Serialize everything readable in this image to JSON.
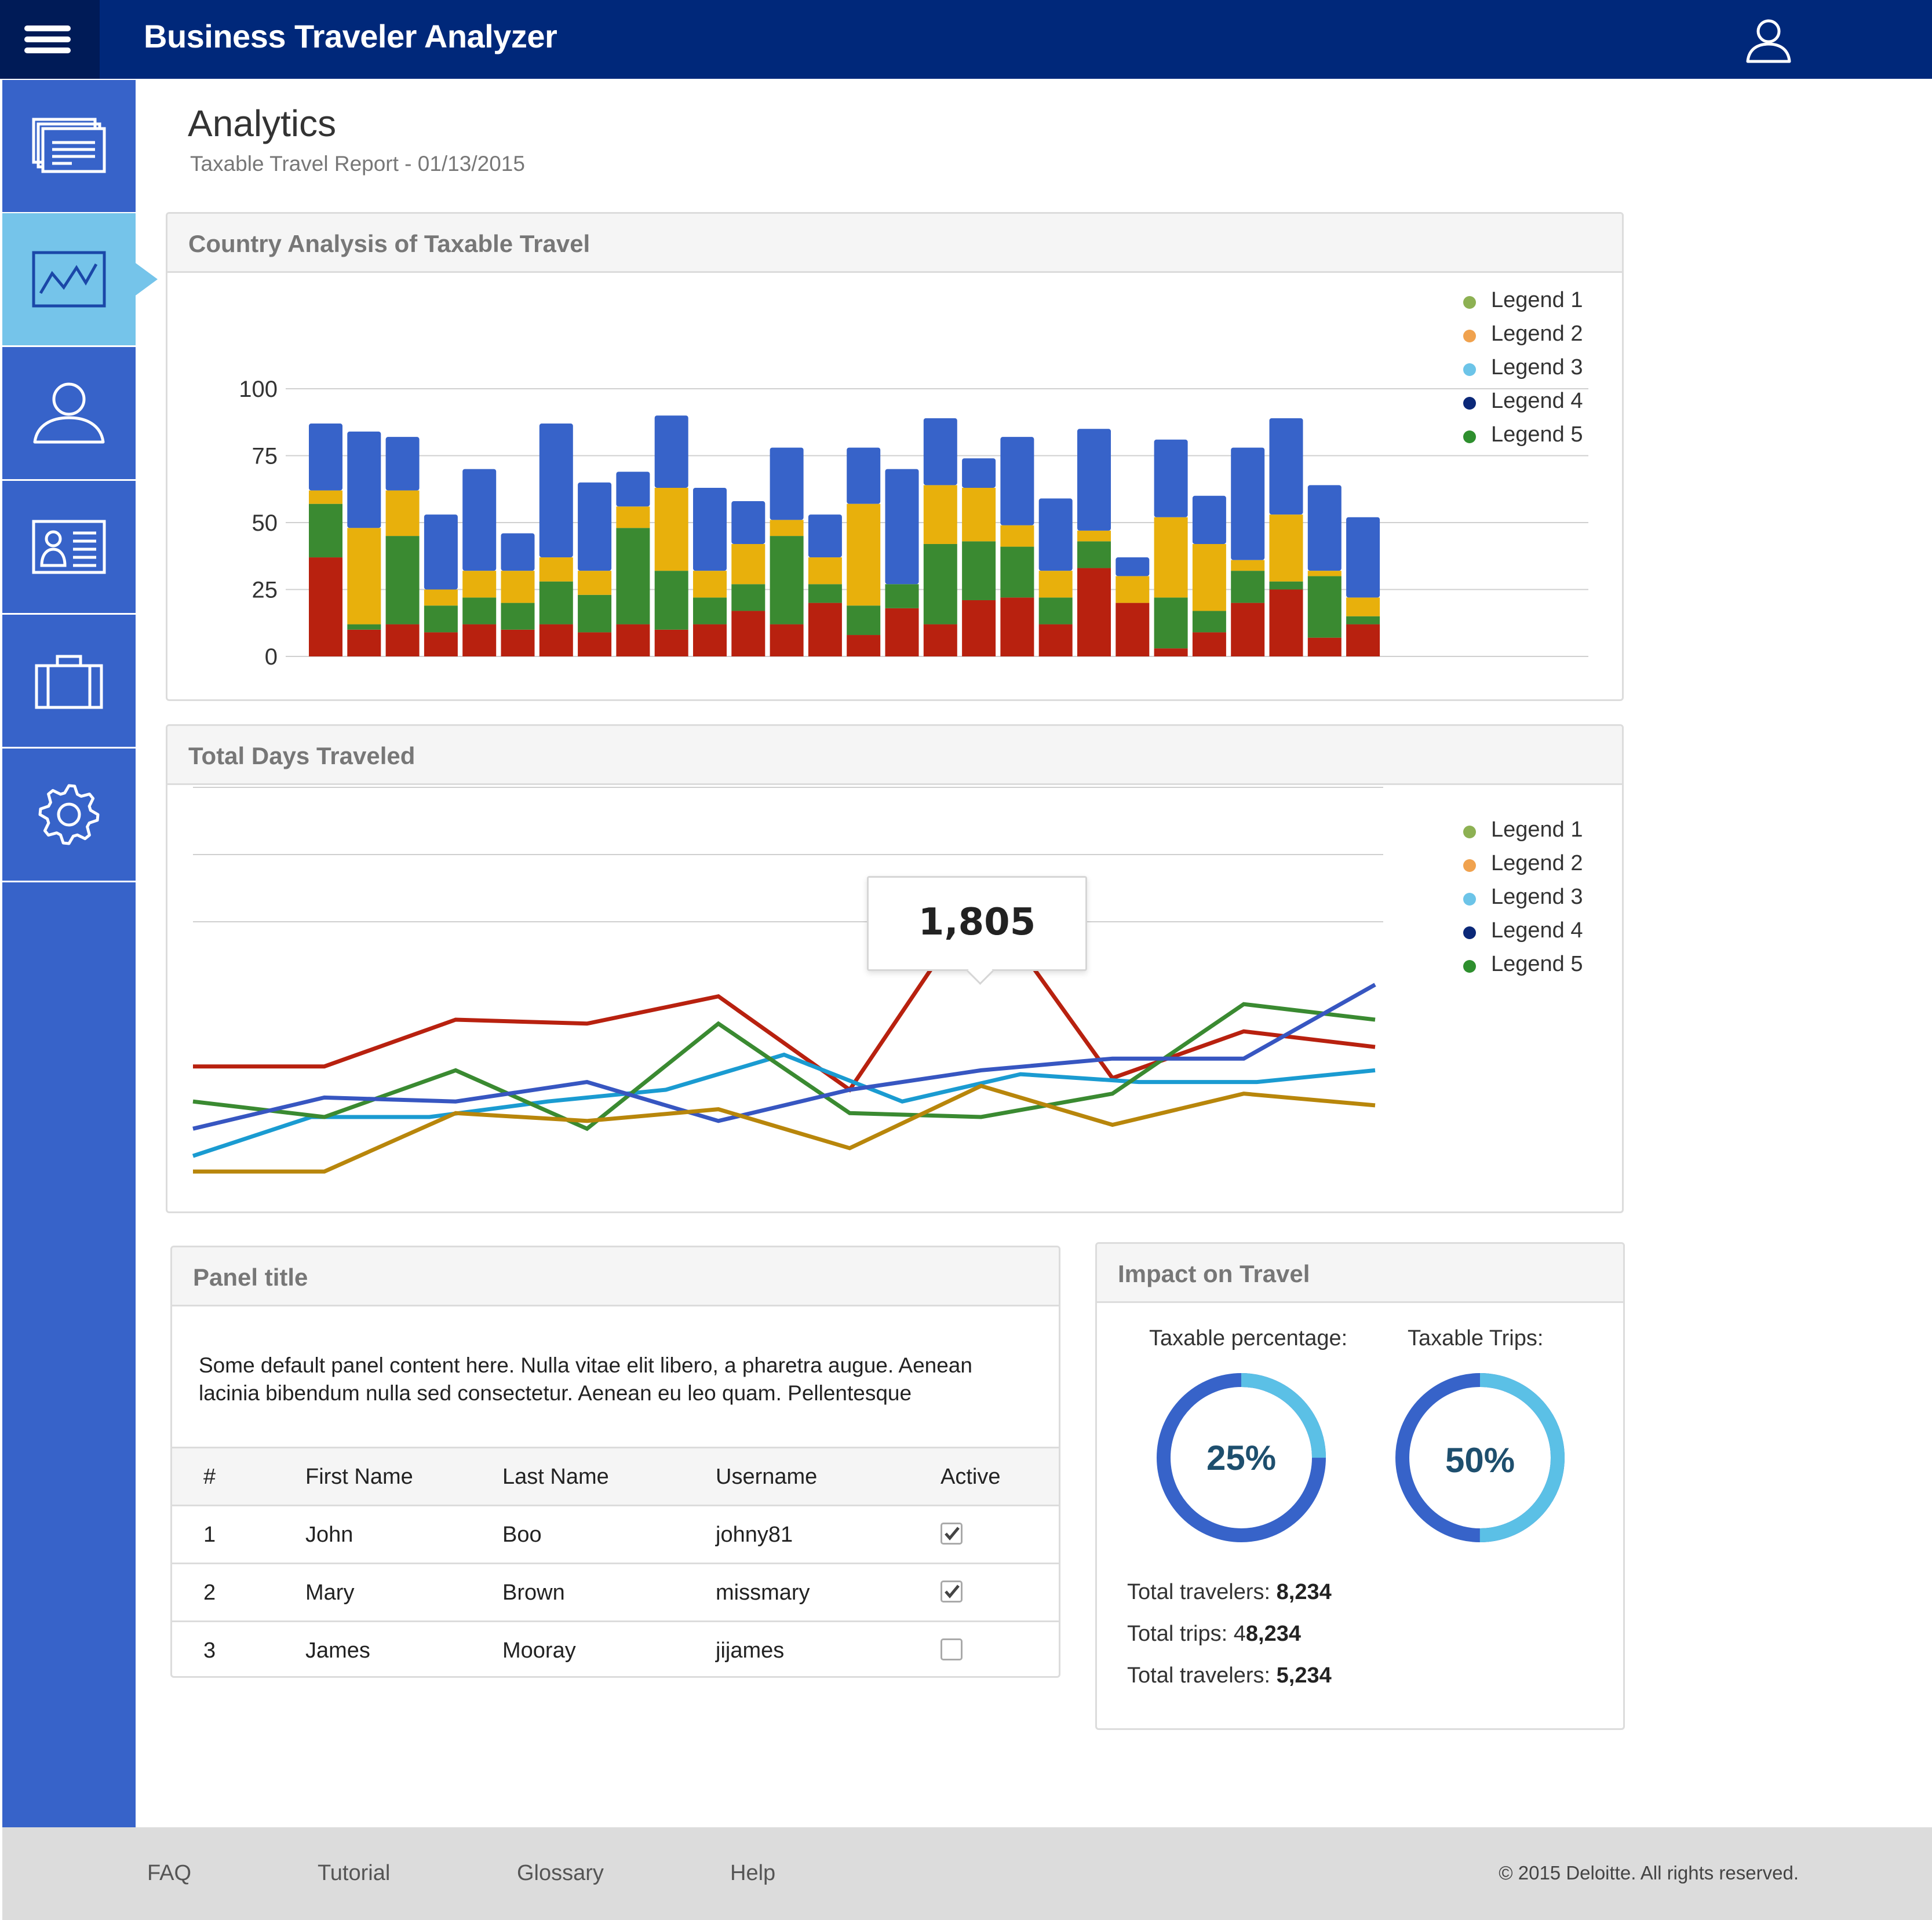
{
  "header": {
    "title": "Business Traveler Analyzer",
    "menu_icon": "hamburger-icon",
    "user_icon": "user-icon"
  },
  "sidebar": {
    "items": [
      {
        "icon": "reports-icon",
        "active": false
      },
      {
        "icon": "analytics-icon",
        "active": true
      },
      {
        "icon": "person-icon",
        "active": false
      },
      {
        "icon": "id-card-icon",
        "active": false
      },
      {
        "icon": "briefcase-icon",
        "active": false
      },
      {
        "icon": "gear-icon",
        "active": false
      }
    ]
  },
  "page": {
    "title": "Analytics",
    "subtitle": "Taxable Travel Report - 01/13/2015"
  },
  "country_panel": {
    "title": "Country Analysis of Taxable Travel"
  },
  "days_panel": {
    "title": "Total Days Traveled",
    "tooltip": "1,805"
  },
  "legend": {
    "items": [
      {
        "label": "Legend 1",
        "color": "#8db153"
      },
      {
        "label": "Legend 2",
        "color": "#f0a24e"
      },
      {
        "label": "Legend 3",
        "color": "#6cc4e8"
      },
      {
        "label": "Legend 4",
        "color": "#0b2878"
      },
      {
        "label": "Legend 5",
        "color": "#2e8f2e"
      }
    ]
  },
  "chart_data": [
    {
      "type": "bar",
      "stacked": true,
      "title": "Country Analysis of Taxable Travel",
      "yticks": [
        0,
        25,
        50,
        75,
        100
      ],
      "ylim": [
        0,
        100
      ],
      "grid": true,
      "legend_position": "top-right",
      "series": [
        {
          "color": "#b8210f",
          "values": [
            37,
            10,
            12,
            9,
            12,
            10,
            12,
            9,
            12,
            10,
            12,
            17,
            12,
            20,
            8,
            18,
            12,
            21,
            22,
            12,
            33,
            20,
            3,
            9,
            20,
            25,
            7,
            12
          ]
        },
        {
          "color": "#3a8a31",
          "values": [
            20,
            2,
            33,
            10,
            10,
            10,
            16,
            14,
            36,
            22,
            10,
            10,
            33,
            7,
            11,
            9,
            30,
            22,
            19,
            10,
            10,
            0,
            19,
            8,
            12,
            3,
            23,
            3
          ]
        },
        {
          "color": "#e8b00c",
          "values": [
            5,
            36,
            17,
            6,
            10,
            12,
            9,
            9,
            8,
            31,
            10,
            15,
            6,
            10,
            38,
            0,
            22,
            20,
            8,
            10,
            4,
            10,
            30,
            25,
            4,
            25,
            2,
            7
          ]
        },
        {
          "color": "#3763c9",
          "values": [
            25,
            36,
            20,
            28,
            38,
            14,
            50,
            33,
            13,
            27,
            31,
            16,
            27,
            16,
            21,
            43,
            25,
            11,
            33,
            27,
            38,
            7,
            29,
            18,
            42,
            36,
            32,
            30
          ]
        }
      ]
    },
    {
      "type": "line",
      "title": "Total Days Traveled",
      "grid": true,
      "legend_position": "top-right",
      "tooltip": "1,805",
      "series": [
        {
          "color": "#b8210f",
          "values": [
            31,
            31,
            43,
            42,
            49,
            25,
            75,
            28,
            40,
            36
          ]
        },
        {
          "color": "#1a9bd1",
          "values": [
            8,
            18,
            18,
            22,
            25,
            34,
            22,
            29,
            27,
            27,
            30
          ]
        },
        {
          "color": "#3a8a31",
          "values": [
            22,
            18,
            30,
            15,
            42,
            19,
            18,
            24,
            47,
            43
          ]
        },
        {
          "color": "#3756c1",
          "values": [
            15,
            23,
            22,
            27,
            17,
            25,
            30,
            33,
            33,
            52
          ]
        },
        {
          "color": "#b8860b",
          "values": [
            4,
            4,
            19,
            17,
            20,
            10,
            26,
            16,
            24,
            21
          ]
        }
      ]
    }
  ],
  "table_panel": {
    "title": "Panel title",
    "body_text": "Some default panel content here. Nulla vitae elit libero, a pharetra augue. Aenean lacinia bibendum nulla sed consectetur. Aenean eu leo quam. Pellentesque",
    "columns": [
      "#",
      "First Name",
      "Last Name",
      "Username",
      "Active"
    ],
    "rows": [
      {
        "num": "1",
        "first": "John",
        "last": "Boo",
        "username": "johny81",
        "active": true
      },
      {
        "num": "2",
        "first": "Mary",
        "last": "Brown",
        "username": "missmary",
        "active": true
      },
      {
        "num": "3",
        "first": "James",
        "last": "Mooray",
        "username": "jijames",
        "active": false
      }
    ]
  },
  "impact_panel": {
    "title": "Impact on Travel",
    "taxable_percentage_label": "Taxable percentage:",
    "taxable_percentage_value": "25%",
    "taxable_percentage_fraction": 0.25,
    "taxable_trips_label": "Taxable Trips:",
    "taxable_trips_value": "50%",
    "taxable_trips_fraction": 0.5,
    "ring_dark_color": "#3763c9",
    "ring_light_color": "#5bc0e6",
    "totals": [
      {
        "label": "Total travelers: ",
        "value": "8,234"
      },
      {
        "label": "Total trips: 4",
        "value": "8,234"
      },
      {
        "label": "Total travelers: ",
        "value": "5,234"
      }
    ]
  },
  "footer": {
    "links": [
      "FAQ",
      "Tutorial",
      "Glossary",
      "Help"
    ],
    "copyright": "© 2015 Deloitte. All rights reserved."
  }
}
